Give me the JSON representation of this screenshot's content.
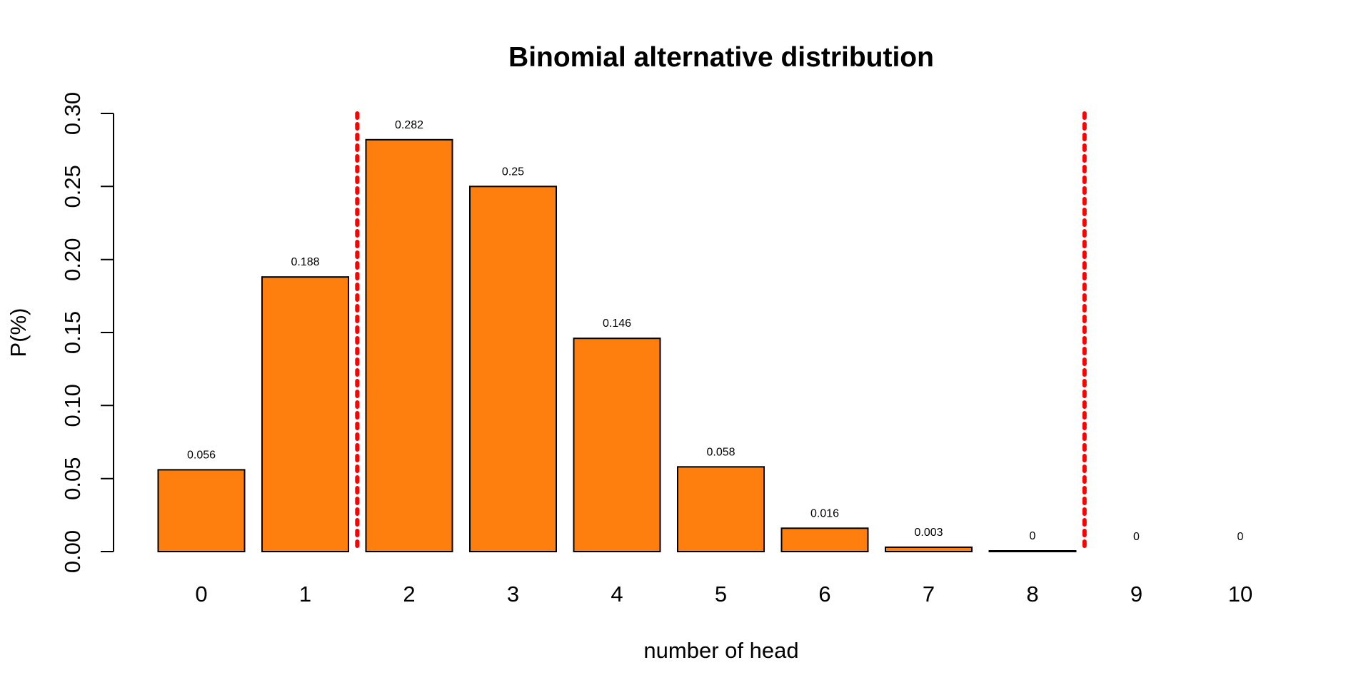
{
  "chart_data": {
    "type": "bar",
    "title": "Binomial alternative distribution",
    "xlabel": "number of head",
    "ylabel": "P(%)",
    "categories": [
      "0",
      "1",
      "2",
      "3",
      "4",
      "5",
      "6",
      "7",
      "8",
      "9",
      "10"
    ],
    "values": [
      0.056,
      0.188,
      0.282,
      0.25,
      0.146,
      0.058,
      0.016,
      0.003,
      0.0005,
      0,
      0
    ],
    "value_labels": [
      "0.056",
      "0.188",
      "0.282",
      "0.25",
      "0.146",
      "0.058",
      "0.016",
      "0.003",
      "0",
      "0",
      "0"
    ],
    "ylim": [
      0,
      0.3
    ],
    "yticks": [
      0.0,
      0.05,
      0.1,
      0.15,
      0.2,
      0.25,
      0.3
    ],
    "ytick_labels": [
      "0.00",
      "0.05",
      "0.10",
      "0.15",
      "0.20",
      "0.25",
      "0.30"
    ],
    "grid": false,
    "bar_color": "#FF7F0E",
    "bar_edge_color": "#000000",
    "reference_lines": {
      "orientation": "vertical",
      "style": "dotted",
      "color": "#FF0000",
      "positions_between_categories": [
        [
          1,
          2
        ],
        [
          8,
          9
        ]
      ]
    }
  }
}
